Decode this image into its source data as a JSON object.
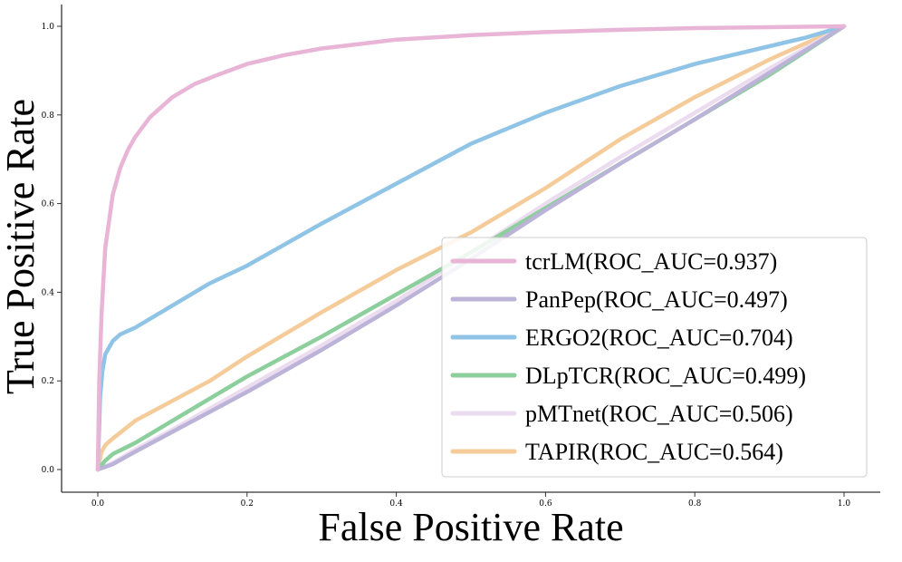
{
  "chart_data": {
    "type": "line",
    "title": "",
    "xlabel": "False Positive Rate",
    "ylabel": "True Positive Rate",
    "xlim": [
      -0.05,
      1.05
    ],
    "ylim": [
      -0.05,
      1.02
    ],
    "xticks": [
      0.0,
      0.2,
      0.4,
      0.6,
      0.8,
      1.0
    ],
    "yticks": [
      0.0,
      0.2,
      0.4,
      0.6,
      0.8,
      1.0
    ],
    "xtick_labels": [
      "0.0",
      "0.2",
      "0.4",
      "0.6",
      "0.8",
      "1.0"
    ],
    "ytick_labels": [
      "0.0",
      "0.2",
      "0.4",
      "0.6",
      "0.8",
      "1.0"
    ],
    "legend_position": "lower-right",
    "grid": false,
    "series": [
      {
        "name": "tcrLM(ROC_AUC=0.937)",
        "color": "#e8b5d6",
        "x": [
          0,
          0.002,
          0.005,
          0.01,
          0.015,
          0.02,
          0.03,
          0.04,
          0.05,
          0.07,
          0.1,
          0.13,
          0.16,
          0.2,
          0.25,
          0.3,
          0.35,
          0.4,
          0.5,
          0.6,
          0.7,
          0.8,
          0.9,
          1.0
        ],
        "y": [
          0,
          0.2,
          0.35,
          0.5,
          0.56,
          0.62,
          0.68,
          0.72,
          0.75,
          0.795,
          0.84,
          0.87,
          0.89,
          0.915,
          0.935,
          0.95,
          0.96,
          0.97,
          0.98,
          0.987,
          0.992,
          0.996,
          0.998,
          1.0
        ]
      },
      {
        "name": "PanPep(ROC_AUC=0.497)",
        "color": "#bcb3d8",
        "x": [
          0,
          0.02,
          0.05,
          0.1,
          0.2,
          0.3,
          0.4,
          0.5,
          0.6,
          0.7,
          0.8,
          0.9,
          1.0
        ],
        "y": [
          0,
          0.012,
          0.04,
          0.085,
          0.175,
          0.27,
          0.37,
          0.475,
          0.585,
          0.69,
          0.79,
          0.895,
          1.0
        ]
      },
      {
        "name": "ERGO2(ROC_AUC=0.704)",
        "color": "#8fc4e6",
        "x": [
          0,
          0.003,
          0.006,
          0.01,
          0.02,
          0.03,
          0.05,
          0.1,
          0.15,
          0.2,
          0.3,
          0.4,
          0.5,
          0.6,
          0.7,
          0.8,
          0.9,
          0.95,
          1.0
        ],
        "y": [
          0,
          0.16,
          0.22,
          0.26,
          0.29,
          0.305,
          0.32,
          0.37,
          0.42,
          0.46,
          0.555,
          0.645,
          0.735,
          0.805,
          0.865,
          0.915,
          0.955,
          0.975,
          1.0
        ]
      },
      {
        "name": "DLpTCR(ROC_AUC=0.499)",
        "color": "#8ccf9c",
        "x": [
          0,
          0.01,
          0.02,
          0.05,
          0.1,
          0.2,
          0.3,
          0.4,
          0.5,
          0.6,
          0.7,
          0.8,
          0.9,
          1.0
        ],
        "y": [
          0,
          0.02,
          0.035,
          0.06,
          0.11,
          0.21,
          0.3,
          0.395,
          0.49,
          0.59,
          0.69,
          0.79,
          0.89,
          1.0
        ]
      },
      {
        "name": "pMTnet(ROC_AUC=0.506)",
        "color": "#ecdcf0",
        "x": [
          0,
          0.02,
          0.05,
          0.1,
          0.2,
          0.3,
          0.4,
          0.5,
          0.6,
          0.7,
          0.8,
          0.9,
          1.0
        ],
        "y": [
          0,
          0.015,
          0.045,
          0.09,
          0.185,
          0.28,
          0.38,
          0.49,
          0.6,
          0.705,
          0.805,
          0.905,
          1.0
        ]
      },
      {
        "name": "TAPIR(ROC_AUC=0.564)",
        "color": "#f5cb9a",
        "x": [
          0,
          0.005,
          0.01,
          0.02,
          0.05,
          0.1,
          0.15,
          0.2,
          0.3,
          0.4,
          0.5,
          0.6,
          0.7,
          0.8,
          0.9,
          1.0
        ],
        "y": [
          0,
          0.04,
          0.055,
          0.07,
          0.11,
          0.155,
          0.2,
          0.255,
          0.355,
          0.45,
          0.535,
          0.635,
          0.745,
          0.84,
          0.925,
          1.0
        ]
      }
    ]
  }
}
